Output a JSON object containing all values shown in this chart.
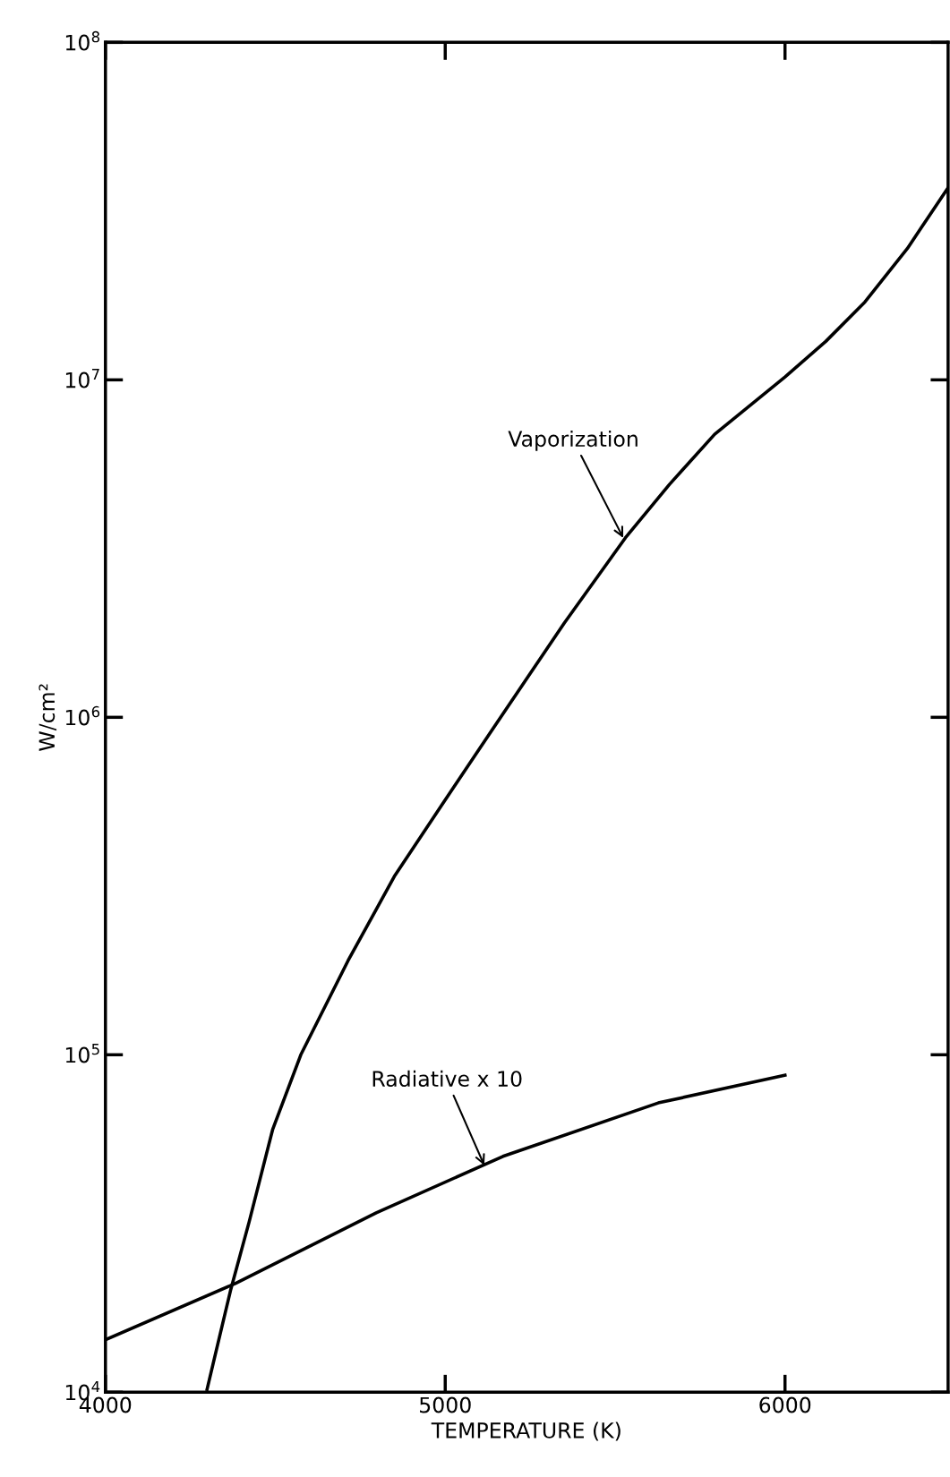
{
  "chart_data": {
    "type": "line",
    "xlabel": "TEMPERATURE (K)",
    "ylabel": "W/cm²",
    "log": "y",
    "xlim": [
      4000,
      6480
    ],
    "xticks": [
      4000,
      5000,
      6000
    ],
    "ylim": [
      10000,
      100000000
    ],
    "yticks": [
      {
        "value": 10000,
        "label": "10$^{4}$"
      },
      {
        "value": 100000,
        "label": "10$^{5}$"
      },
      {
        "value": 1000000,
        "label": "10$^{6}$"
      },
      {
        "value": 10000000,
        "label": "10$^{7}$"
      },
      {
        "value": 100000000,
        "label": "10$^{8}$"
      }
    ],
    "grid": false,
    "legend": false,
    "marker": "none",
    "line_style": "solid",
    "series": [
      {
        "color": "#000000",
        "x": [
          4299,
          4368,
          4423,
          4492,
          4575,
          4714,
          4852,
          4990,
          5129,
          5350,
          5530,
          5660,
          5793,
          6000,
          6120,
          6235,
          6360,
          6479
        ],
        "values": [
          10200,
          20000,
          32000,
          60000,
          100000,
          190000,
          340000,
          550000,
          890000,
          1900000,
          3400000,
          4900000,
          6900000,
          10200000,
          13000000,
          17000000,
          24500000,
          37000000
        ]
      },
      {
        "color": "#000000",
        "x": [
          4000,
          4382,
          4797,
          5170,
          5627,
          6000
        ],
        "values": [
          14300,
          21000,
          34000,
          50000,
          72000,
          87000
        ]
      }
    ],
    "annotations": [
      {
        "text": "Vaporization",
        "x": 5524,
        "y": 3400000
      },
      {
        "text": "Radiative x 10",
        "x": 5115,
        "y": 47000
      }
    ]
  }
}
